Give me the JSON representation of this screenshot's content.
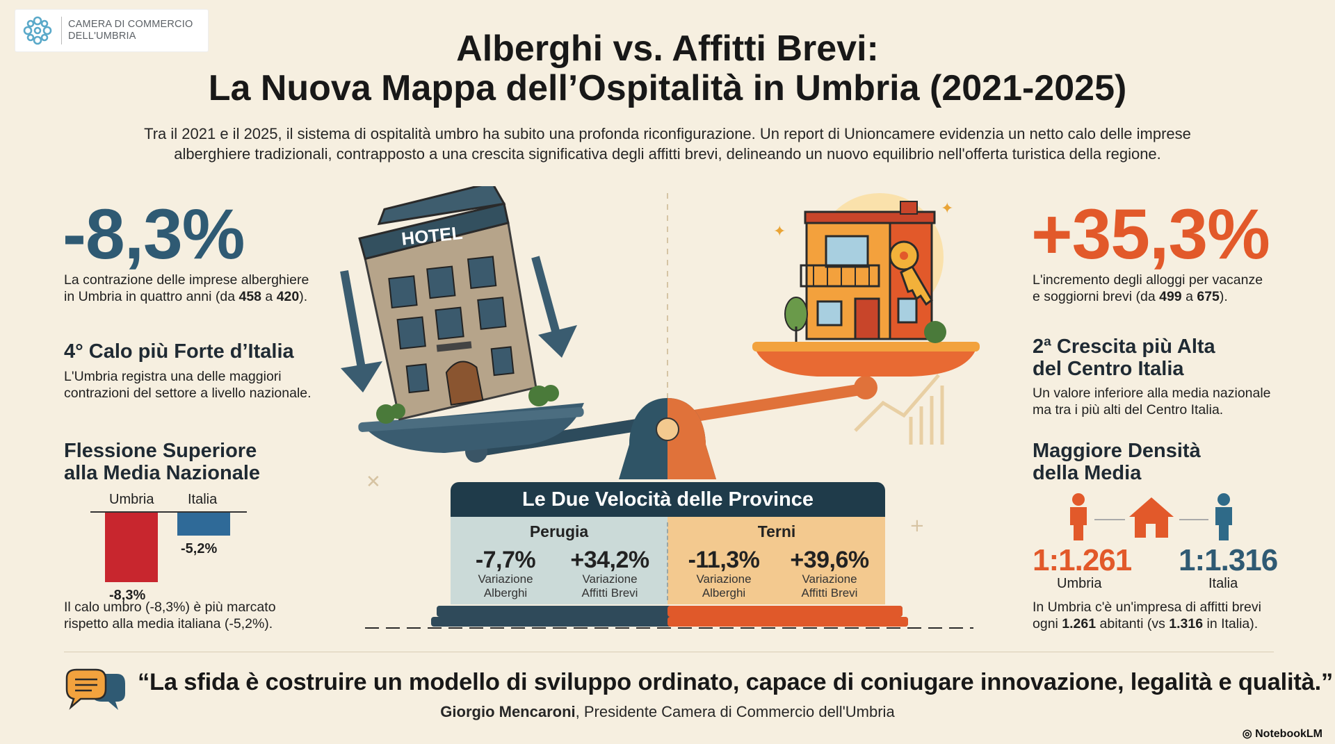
{
  "logo": {
    "line1": "CAMERA DI COMMERCIO",
    "line2": "DELL'UMBRIA"
  },
  "title": {
    "line1": "Alberghi vs. Affitti Brevi:",
    "line2": "La Nuova Mappa dell’Ospitalità in Umbria (2021-2025)"
  },
  "intro": {
    "line1": "Tra il 2021 e il 2025, il sistema di ospitalità umbro ha subito una profonda riconfigurazione. Un report di Unioncamere evidenzia un netto calo delle imprese",
    "line2": "alberghiere tradizionali, contrapposto a una crescita significativa degli affitti brevi, delineando un nuovo equilibrio nell'offerta turistica della regione."
  },
  "left": {
    "big": "-8,3%",
    "big_desc_1": "La contrazione delle imprese alberghiere",
    "big_desc_2_pre": "in Umbria in quattro anni (da ",
    "big_desc_2_a": "458",
    "big_desc_2_mid": " a ",
    "big_desc_2_b": "420",
    "big_desc_2_post": ").",
    "h1": "4° Calo più Forte d’Italia",
    "h1_desc_1": "L'Umbria registra una delle maggiori",
    "h1_desc_2": "contrazioni del settore a livello nazionale.",
    "h2_1": "Flessione Superiore",
    "h2_2": "alla Media Nazionale",
    "note_1": "Il calo umbro (-8,3%) è più marcato",
    "note_2": "rispetto alla media italiana (-5,2%)."
  },
  "bar_compare": {
    "umbria_label": "Umbria",
    "italia_label": "Italia",
    "umbria_value_text": "-8,3%",
    "italia_value_text": "-5,2%",
    "umbria_value": -8.3,
    "italia_value": -5.2,
    "umbria_color": "#c8262e",
    "italia_color": "#2f6a98"
  },
  "right": {
    "big": "+35,3%",
    "big_desc_1": "L'incremento degli alloggi per vacanze",
    "big_desc_2_pre": "e soggiorni brevi (da ",
    "big_desc_2_a": "499",
    "big_desc_2_mid": " a ",
    "big_desc_2_b": "675",
    "big_desc_2_post": ").",
    "h1_1": "2ª Crescita più Alta",
    "h1_2": "del Centro Italia",
    "h1_desc_1": "Un valore inferiore alla media nazionale",
    "h1_desc_2": "ma tra i più alti del Centro Italia.",
    "h2_1": "Maggiore Densità",
    "h2_2": "della Media",
    "umbria_ratio": "1:1.261",
    "umbria_label": "Umbria",
    "italia_ratio": "1:1.316",
    "italia_label": "Italia",
    "note_1": "In Umbria c'è un'impresa di affitti brevi",
    "note_2_pre": "ogni ",
    "note_2_a": "1.261",
    "note_2_mid": " abitanti (vs ",
    "note_2_b": "1.316",
    "note_2_post": " in Italia)."
  },
  "scale": {
    "hotel_sign": "HOTEL"
  },
  "provinces": {
    "title": "Le Due Velocità delle Province",
    "perugia": {
      "name": "Perugia",
      "alberghi": "-7,7%",
      "affitti": "+34,2%"
    },
    "terni": {
      "name": "Terni",
      "alberghi": "-11,3%",
      "affitti": "+39,6%"
    },
    "sub_variazione": "Variazione",
    "sub_alberghi": "Alberghi",
    "sub_affitti": "Affitti Brevi"
  },
  "quote": {
    "text": "“La sfida è costruire un modello di sviluppo ordinato, capace di coniugare innovazione, legalità e qualità.”",
    "author": "Giorgio Mencaroni",
    "role": ", Presidente Camera di Commercio dell'Umbria"
  },
  "footer": {
    "brand": "NotebookLM"
  },
  "colors": {
    "blue": "#2f5a73",
    "orange": "#e2592a",
    "navy": "#1f3b4a"
  }
}
